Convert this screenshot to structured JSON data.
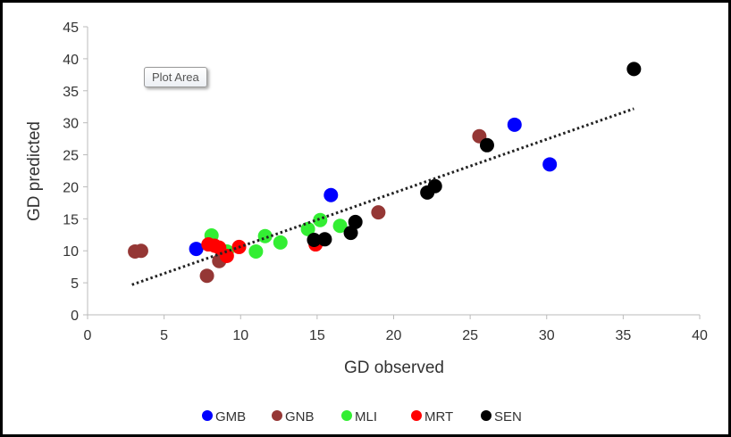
{
  "chart_data": {
    "type": "scatter",
    "title": "",
    "xlabel": "GD observed",
    "ylabel": "GD predicted",
    "xlim": [
      0,
      40
    ],
    "ylim": [
      0,
      45
    ],
    "xticks": [
      0,
      5,
      10,
      15,
      20,
      25,
      30,
      35,
      40
    ],
    "yticks": [
      0,
      5,
      10,
      15,
      20,
      25,
      30,
      35,
      40,
      45
    ],
    "grid": false,
    "legend_position": "bottom",
    "trendline": {
      "style": "dotted",
      "color": "#222222",
      "x": [
        2.9,
        35.7
      ],
      "y": [
        4.7,
        32.2
      ]
    },
    "series": [
      {
        "name": "GMB",
        "color": "#0000ff",
        "points": [
          [
            7.1,
            10.3
          ],
          [
            15.9,
            18.7
          ],
          [
            27.9,
            29.7
          ],
          [
            30.2,
            23.5
          ]
        ]
      },
      {
        "name": "GNB",
        "color": "#953735",
        "points": [
          [
            3.1,
            9.9
          ],
          [
            3.5,
            10.0
          ],
          [
            7.8,
            6.1
          ],
          [
            8.6,
            8.4
          ],
          [
            19.0,
            16.0
          ],
          [
            25.6,
            27.9
          ]
        ]
      },
      {
        "name": "MLI",
        "color": "#33ee33",
        "points": [
          [
            8.1,
            12.4
          ],
          [
            9.1,
            9.9
          ],
          [
            11.0,
            9.9
          ],
          [
            11.6,
            12.3
          ],
          [
            12.6,
            11.3
          ],
          [
            14.4,
            13.4
          ],
          [
            15.2,
            14.8
          ],
          [
            16.5,
            13.9
          ]
        ]
      },
      {
        "name": "MRT",
        "color": "#ff0000",
        "points": [
          [
            7.9,
            11.0
          ],
          [
            8.3,
            10.8
          ],
          [
            8.6,
            10.5
          ],
          [
            9.1,
            9.2
          ],
          [
            9.9,
            10.6
          ],
          [
            14.9,
            11.0
          ]
        ]
      },
      {
        "name": "SEN",
        "color": "#000000",
        "points": [
          [
            14.8,
            11.7
          ],
          [
            15.5,
            11.8
          ],
          [
            17.2,
            12.8
          ],
          [
            17.5,
            14.5
          ],
          [
            22.2,
            19.1
          ],
          [
            22.7,
            20.1
          ],
          [
            26.1,
            26.5
          ],
          [
            35.7,
            38.4
          ]
        ]
      }
    ]
  },
  "tooltip": {
    "label": "Plot Area"
  }
}
